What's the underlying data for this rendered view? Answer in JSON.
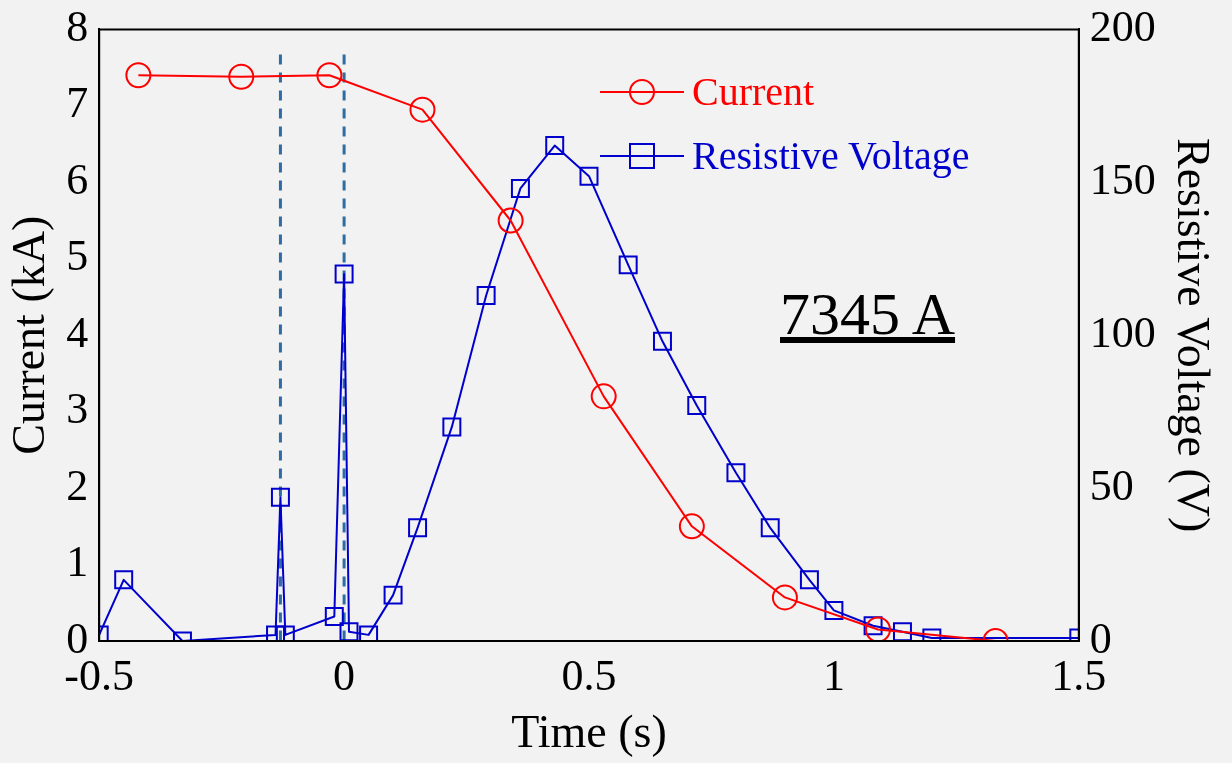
{
  "chart_data": {
    "type": "line",
    "xlabel": "Time (s)",
    "ylabel": "Current (kA)",
    "y2label": "Resistive Voltage (V)",
    "xlim": [
      -0.5,
      1.5
    ],
    "xticks": [
      -0.5,
      0,
      0.5,
      1,
      1.5
    ],
    "ylim": [
      0,
      8
    ],
    "yticks": [
      0,
      1,
      2,
      3,
      4,
      5,
      6,
      7,
      8
    ],
    "y2lim": [
      0,
      200
    ],
    "y2ticks": [
      0,
      50,
      100,
      150,
      200
    ],
    "grid": false,
    "legend": "top right",
    "annotations": [
      "7345 A"
    ],
    "ref_lines": [
      {
        "axis": "x",
        "value": -0.13,
        "label": null,
        "color": "#2e6da4",
        "line_style": "dashed"
      },
      {
        "axis": "x",
        "value": 0,
        "label": null,
        "color": "#2e6da4",
        "line_style": "dashed"
      }
    ],
    "series": [
      {
        "name": "Current",
        "color": "#ff0000",
        "marker": "circle",
        "x": [
          -0.42,
          -0.21,
          -0.03,
          0.16,
          0.34,
          0.53,
          0.71,
          0.9,
          1.09,
          1.33
        ],
        "values": [
          7.4,
          7.38,
          7.4,
          6.95,
          5.5,
          3.2,
          1.5,
          0.57,
          0.15,
          0
        ]
      },
      {
        "name": "Resistive Voltage",
        "color": "#0000cc",
        "marker": "square",
        "axis": "y2",
        "x": [
          -0.5,
          -0.45,
          -0.33,
          -0.14,
          -0.13,
          -0.12,
          -0.02,
          0,
          0.01,
          0.05,
          0.1,
          0.15,
          0.22,
          0.29,
          0.36,
          0.43,
          0.5,
          0.58,
          0.65,
          0.72,
          0.8,
          0.87,
          0.95,
          1,
          1.08,
          1.14,
          1.2,
          1.5
        ],
        "values": [
          2,
          20,
          0,
          2,
          47,
          2,
          8,
          120,
          3,
          2,
          15,
          37,
          70,
          113,
          148,
          162,
          152,
          123,
          98,
          77,
          55,
          37,
          20,
          10,
          5,
          3,
          1,
          1
        ]
      }
    ]
  }
}
